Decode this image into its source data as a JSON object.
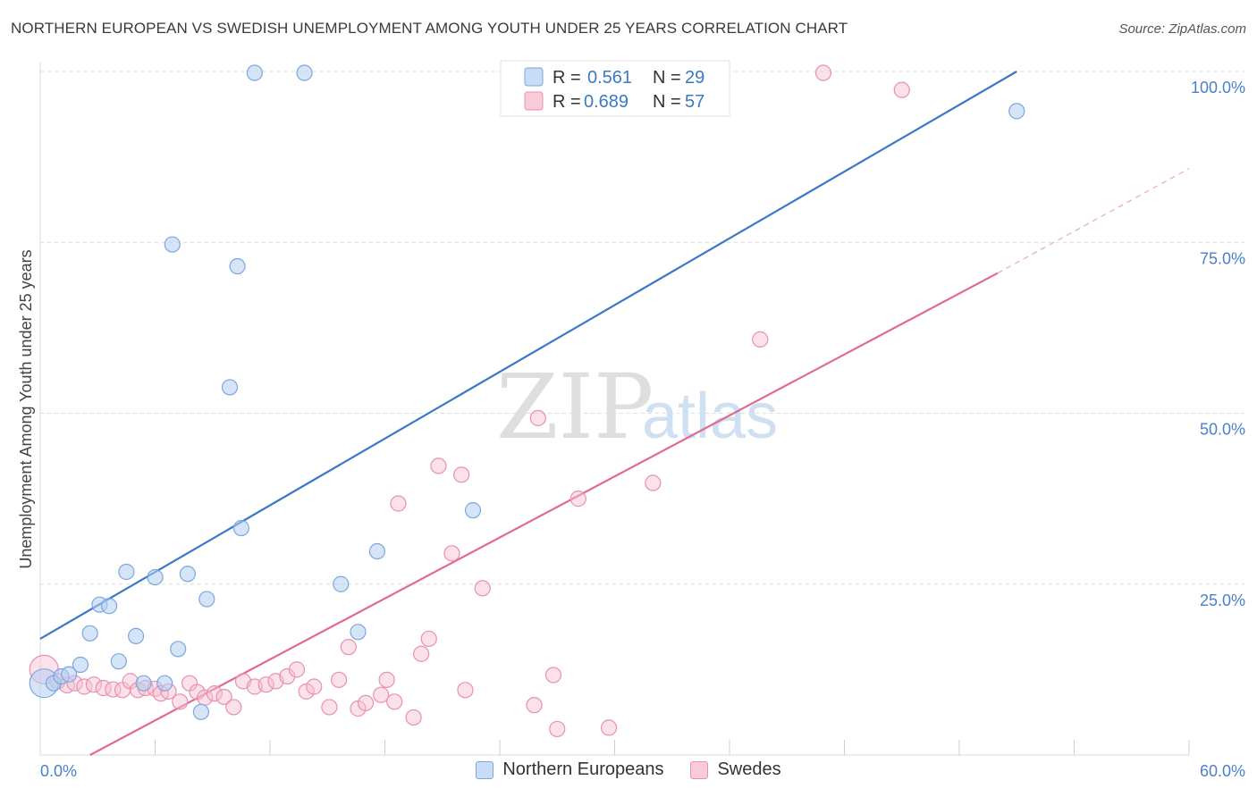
{
  "header": {
    "title": "NORTHERN EUROPEAN VS SWEDISH UNEMPLOYMENT AMONG YOUTH UNDER 25 YEARS CORRELATION CHART",
    "source": "Source: ZipAtlas.com"
  },
  "watermark": {
    "zip": "ZIP",
    "atlas": "atlas"
  },
  "legend": {
    "r_label": "R =",
    "n_label": "N =",
    "northern": {
      "name": "Northern Europeans",
      "r": "0.561",
      "n": "29",
      "color": "#7aa7e0",
      "fill": "#c9dcf5"
    },
    "swedes": {
      "name": "Swedes",
      "r": "0.689",
      "n": "57",
      "color": "#e890ad",
      "fill": "#f8cbd9"
    }
  },
  "chart_data": {
    "type": "scatter",
    "title": "NORTHERN EUROPEAN VS SWEDISH UNEMPLOYMENT AMONG YOUTH UNDER 25 YEARS CORRELATION CHART",
    "xlabel": "",
    "ylabel": "Unemployment Among Youth under 25 years",
    "xlim": [
      0,
      60
    ],
    "ylim": [
      0,
      100
    ],
    "x_tick_labels": [
      "0.0%",
      "60.0%"
    ],
    "y_tick_labels": [
      "25.0%",
      "50.0%",
      "75.0%",
      "100.0%"
    ],
    "y_ticks": [
      25,
      50,
      75,
      100
    ],
    "series": [
      {
        "name": "Northern Europeans",
        "color": "#3a78c8",
        "trend": {
          "x": [
            0,
            51
          ],
          "y": [
            17,
            100
          ]
        },
        "points": [
          {
            "x": 0.2,
            "y": 10.5,
            "big": true
          },
          {
            "x": 0.7,
            "y": 10.5
          },
          {
            "x": 1.1,
            "y": 11.5
          },
          {
            "x": 1.5,
            "y": 11.8
          },
          {
            "x": 2.1,
            "y": 13.2
          },
          {
            "x": 2.6,
            "y": 17.8
          },
          {
            "x": 3.1,
            "y": 22.0
          },
          {
            "x": 3.6,
            "y": 21.8
          },
          {
            "x": 4.1,
            "y": 13.7
          },
          {
            "x": 4.5,
            "y": 26.8
          },
          {
            "x": 5.0,
            "y": 17.4
          },
          {
            "x": 5.4,
            "y": 10.5
          },
          {
            "x": 6.0,
            "y": 26.0
          },
          {
            "x": 6.5,
            "y": 10.5
          },
          {
            "x": 6.9,
            "y": 74.7
          },
          {
            "x": 7.2,
            "y": 15.5
          },
          {
            "x": 7.7,
            "y": 26.5
          },
          {
            "x": 8.4,
            "y": 6.3
          },
          {
            "x": 8.7,
            "y": 22.8
          },
          {
            "x": 9.9,
            "y": 53.8
          },
          {
            "x": 10.3,
            "y": 71.5
          },
          {
            "x": 10.5,
            "y": 33.2
          },
          {
            "x": 11.2,
            "y": 99.8
          },
          {
            "x": 13.8,
            "y": 99.8
          },
          {
            "x": 15.7,
            "y": 25.0
          },
          {
            "x": 16.6,
            "y": 18.0
          },
          {
            "x": 17.6,
            "y": 29.8
          },
          {
            "x": 22.6,
            "y": 35.8
          },
          {
            "x": 51.0,
            "y": 94.2
          }
        ]
      },
      {
        "name": "Swedes",
        "color": "#e06a94",
        "trend": {
          "x": [
            2.6,
            50
          ],
          "y": [
            0,
            70.5
          ]
        },
        "trend_dashed": {
          "x": [
            50,
            60
          ],
          "y": [
            70.5,
            85.8
          ]
        },
        "points": [
          {
            "x": 0.2,
            "y": 12.5,
            "big": true
          },
          {
            "x": 0.9,
            "y": 10.8
          },
          {
            "x": 1.4,
            "y": 10.2
          },
          {
            "x": 1.8,
            "y": 10.5
          },
          {
            "x": 2.3,
            "y": 10.0
          },
          {
            "x": 2.8,
            "y": 10.3
          },
          {
            "x": 3.3,
            "y": 9.8
          },
          {
            "x": 3.8,
            "y": 9.6
          },
          {
            "x": 4.3,
            "y": 9.5
          },
          {
            "x": 4.7,
            "y": 10.8
          },
          {
            "x": 5.1,
            "y": 9.5
          },
          {
            "x": 5.5,
            "y": 9.8
          },
          {
            "x": 6.0,
            "y": 9.7
          },
          {
            "x": 6.3,
            "y": 9.0
          },
          {
            "x": 6.7,
            "y": 9.3
          },
          {
            "x": 7.3,
            "y": 7.8
          },
          {
            "x": 7.8,
            "y": 10.5
          },
          {
            "x": 8.2,
            "y": 9.2
          },
          {
            "x": 8.6,
            "y": 8.4
          },
          {
            "x": 9.1,
            "y": 9.0
          },
          {
            "x": 9.6,
            "y": 8.5
          },
          {
            "x": 10.1,
            "y": 7.0
          },
          {
            "x": 10.6,
            "y": 10.8
          },
          {
            "x": 11.2,
            "y": 10.0
          },
          {
            "x": 11.8,
            "y": 10.3
          },
          {
            "x": 12.3,
            "y": 10.8
          },
          {
            "x": 12.9,
            "y": 11.5
          },
          {
            "x": 13.4,
            "y": 12.5
          },
          {
            "x": 13.9,
            "y": 9.3
          },
          {
            "x": 14.3,
            "y": 10.0
          },
          {
            "x": 15.1,
            "y": 7.0
          },
          {
            "x": 15.6,
            "y": 11.0
          },
          {
            "x": 16.1,
            "y": 15.8
          },
          {
            "x": 16.6,
            "y": 6.8
          },
          {
            "x": 17.0,
            "y": 7.6
          },
          {
            "x": 17.8,
            "y": 8.8
          },
          {
            "x": 18.1,
            "y": 11.0
          },
          {
            "x": 18.5,
            "y": 7.8
          },
          {
            "x": 18.7,
            "y": 36.8
          },
          {
            "x": 19.5,
            "y": 5.5
          },
          {
            "x": 19.9,
            "y": 14.8
          },
          {
            "x": 20.3,
            "y": 17.0
          },
          {
            "x": 20.8,
            "y": 42.3
          },
          {
            "x": 21.5,
            "y": 29.5
          },
          {
            "x": 22.2,
            "y": 9.5
          },
          {
            "x": 22.0,
            "y": 41.0
          },
          {
            "x": 23.1,
            "y": 24.4
          },
          {
            "x": 25.8,
            "y": 7.3
          },
          {
            "x": 26.0,
            "y": 49.3
          },
          {
            "x": 26.8,
            "y": 11.7
          },
          {
            "x": 27.0,
            "y": 3.8
          },
          {
            "x": 28.1,
            "y": 37.5
          },
          {
            "x": 29.7,
            "y": 4.0
          },
          {
            "x": 32.0,
            "y": 39.8
          },
          {
            "x": 37.6,
            "y": 60.8
          },
          {
            "x": 40.9,
            "y": 99.8
          },
          {
            "x": 45.0,
            "y": 97.3
          }
        ]
      }
    ]
  }
}
